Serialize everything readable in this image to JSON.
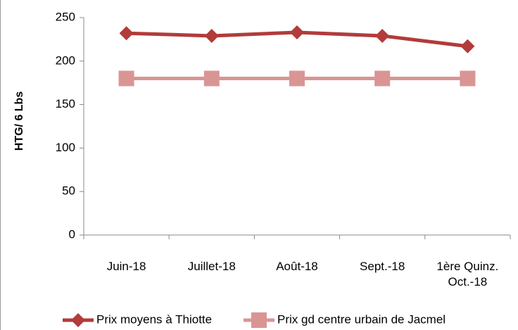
{
  "chart_data": {
    "type": "line",
    "y_label": "HTG/ 6 Lbs",
    "categories": [
      "Juin-18",
      "Juillet-18",
      "Août-18",
      "Sept.-18",
      "1ère Quinz. Oct.-18"
    ],
    "series": [
      {
        "name": "Prix moyens à Thiotte",
        "color": "#b23b3b",
        "marker": "diamond",
        "values": [
          232,
          229,
          233,
          229,
          217
        ]
      },
      {
        "name": "Prix gd centre urbain de Jacmel",
        "color": "#d99594",
        "marker": "square",
        "values": [
          180,
          180,
          180,
          180,
          180
        ]
      }
    ],
    "ylim": [
      0,
      250
    ],
    "yticks": [
      0,
      50,
      100,
      150,
      200,
      250
    ],
    "grid": false,
    "legend": "bottom"
  }
}
